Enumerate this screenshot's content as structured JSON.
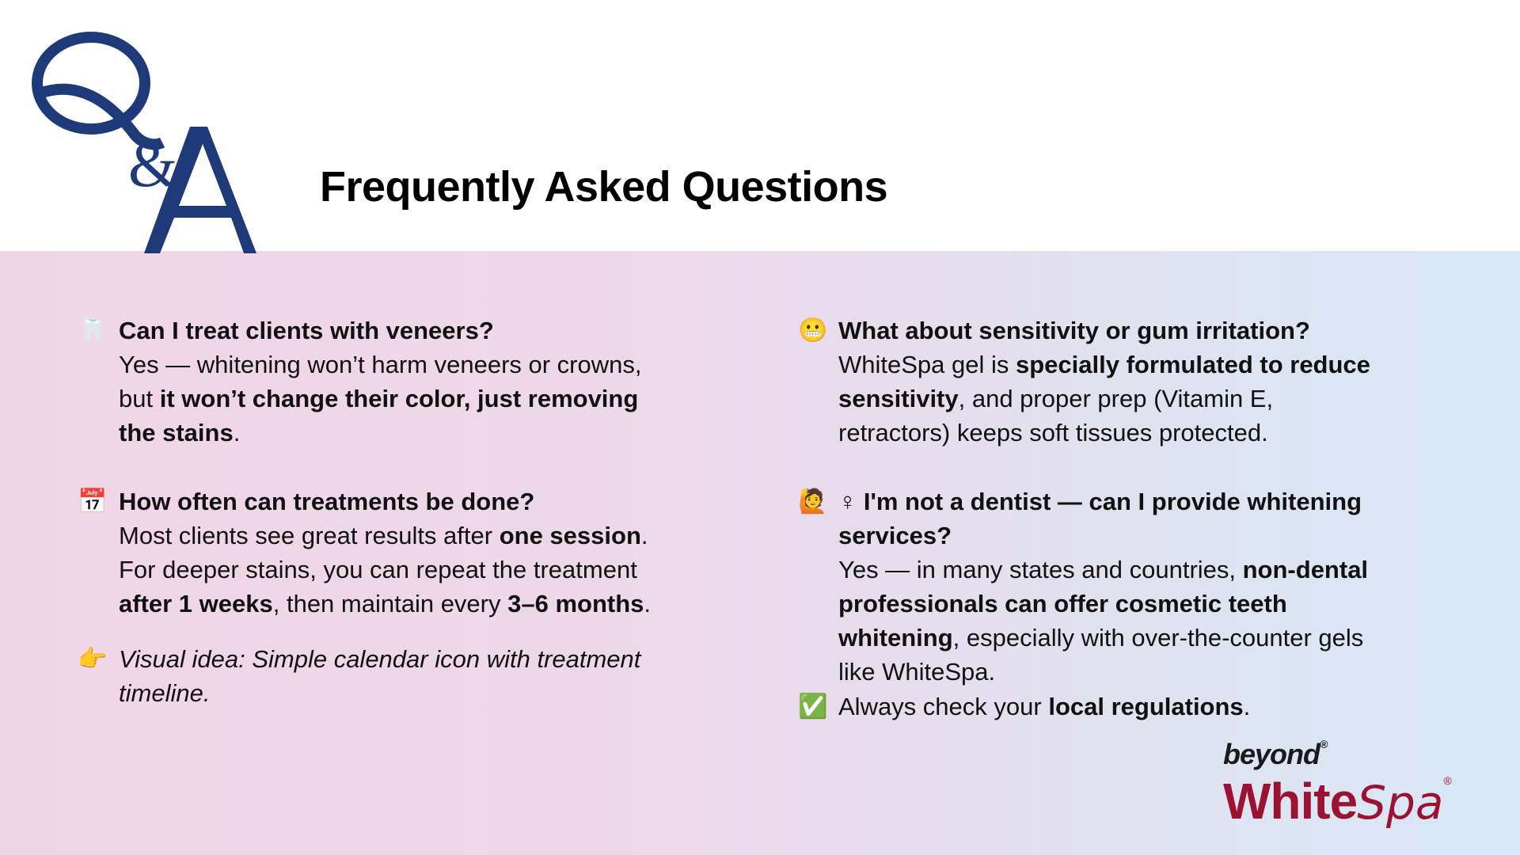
{
  "title": "Frequently Asked Questions",
  "logo_qa": "Q&A",
  "colors": {
    "navy": "#1e3a78",
    "brand_red": "#9b1232",
    "band_left": "#f1d5e6",
    "band_right": "#d7e8f6"
  },
  "brand": {
    "top": "beyond",
    "main_bold": "White",
    "main_italic": "Spa",
    "reg": "®"
  },
  "faqs": [
    {
      "icon": "tooth-icon",
      "glyph": "🦷",
      "lines": [
        [
          {
            "t": "Can I treat clients with veneers?",
            "b": true
          }
        ],
        [
          {
            "t": "Yes — whitening won’t harm veneers or crowns,"
          }
        ],
        [
          {
            "t": "but "
          },
          {
            "t": "it won’t change their color, just removing",
            "b": true
          }
        ],
        [
          {
            "t": "the stains",
            "b": true
          },
          {
            "t": "."
          }
        ]
      ]
    },
    {
      "icon": "calendar-icon",
      "glyph": "📅",
      "lines": [
        [
          {
            "t": "How often can treatments be done?",
            "b": true
          }
        ],
        [
          {
            "t": "Most clients see great results after "
          },
          {
            "t": "one session",
            "b": true
          },
          {
            "t": "."
          }
        ],
        [
          {
            "t": "For deeper stains, you can repeat the treatment"
          }
        ],
        [
          {
            "t": "after 1 weeks",
            "b": true
          },
          {
            "t": ", then maintain every "
          },
          {
            "t": "3–6 months",
            "b": true
          },
          {
            "t": "."
          }
        ]
      ]
    },
    {
      "icon": "pointing-hand-icon",
      "glyph": "👉",
      "lines": [
        [
          {
            "t": "Visual idea: Simple calendar icon with treatment",
            "i": true
          }
        ],
        [
          {
            "t": "timeline.",
            "i": true
          }
        ]
      ]
    },
    {
      "icon": "grimacing-face-icon",
      "glyph": "😬",
      "lines": [
        [
          {
            "t": "What about sensitivity or gum irritation?",
            "b": true
          }
        ],
        [
          {
            "t": "WhiteSpa gel is "
          },
          {
            "t": "specially formulated to reduce",
            "b": true
          }
        ],
        [
          {
            "t": "sensitivity",
            "b": true
          },
          {
            "t": ", and proper prep (Vitamin E,"
          }
        ],
        [
          {
            "t": "retractors) keeps soft tissues protected."
          }
        ]
      ]
    },
    {
      "icon": "woman-icon",
      "glyph": "🙋",
      "lines": [
        [
          {
            "t": "♀ I'm not a dentist — can I provide whitening",
            "b": true
          }
        ],
        [
          {
            "t": "services?",
            "b": true
          }
        ],
        [
          {
            "t": "Yes — in many states and countries, "
          },
          {
            "t": "non-dental",
            "b": true
          }
        ],
        [
          {
            "t": "professionals can offer cosmetic teeth",
            "b": true
          }
        ],
        [
          {
            "t": "whitening",
            "b": true
          },
          {
            "t": ", especially with over-the-counter gels"
          }
        ],
        [
          {
            "t": "like WhiteSpa."
          }
        ]
      ]
    },
    {
      "icon": "check-mark-icon",
      "glyph": "✅",
      "lines": [
        [
          {
            "t": "Always check your "
          },
          {
            "t": "local regulations",
            "b": true
          },
          {
            "t": "."
          }
        ]
      ]
    }
  ]
}
